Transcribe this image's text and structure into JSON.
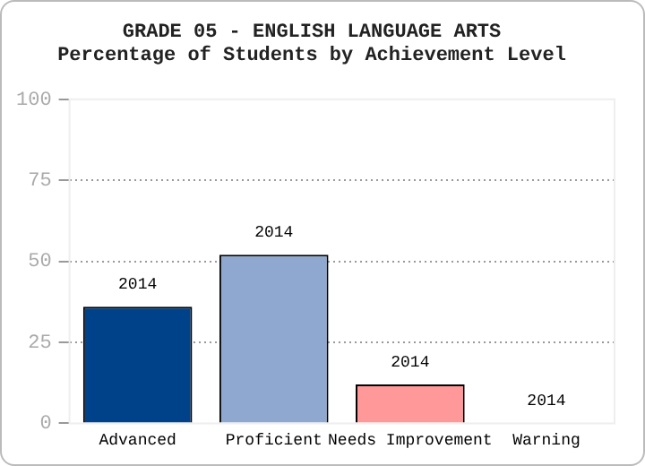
{
  "chart_data": {
    "type": "bar",
    "title": "GRADE 05 - ENGLISH LANGUAGE ARTS",
    "subtitle": "Percentage of Students by Achievement Level",
    "categories": [
      "Advanced",
      "Proficient",
      "Needs Improvement",
      "Warning"
    ],
    "series": [
      {
        "name": "2014",
        "values": [
          36,
          52,
          12,
          0
        ],
        "colors": [
          "#00428a",
          "#8fa8cf",
          "#ff9999",
          "#d9d9d9"
        ]
      }
    ],
    "ylim": [
      0,
      100
    ],
    "yticks": [
      0,
      25,
      50,
      75,
      100
    ],
    "grid": "y",
    "legend": false
  }
}
